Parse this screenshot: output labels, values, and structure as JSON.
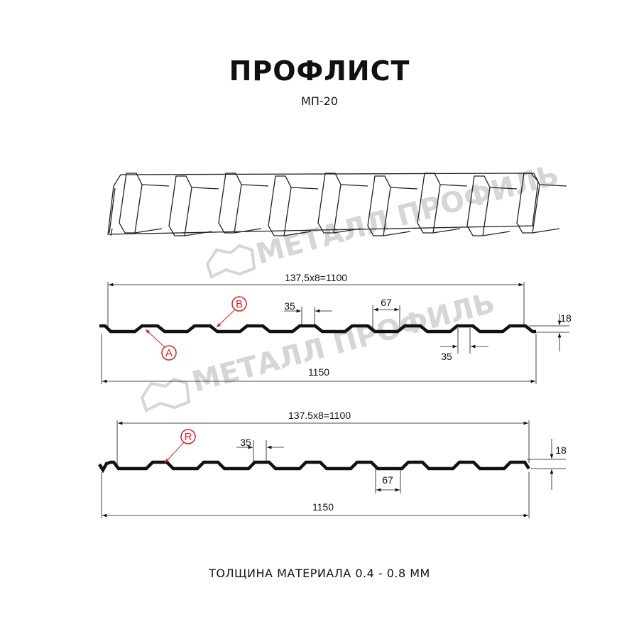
{
  "header": {
    "title": "ПРОФЛИСТ",
    "model": "МП-20"
  },
  "watermark": {
    "text": "МЕТАЛЛ ПРОФИЛЬ"
  },
  "profile_1": {
    "dim_useful": "137,5x8=1100",
    "dim_total": "1150",
    "dim_top_width": "35",
    "dim_bottom_width_bottom": "35",
    "dim_rib_base": "67",
    "dim_height": "18",
    "marker_a": "A",
    "marker_b": "B"
  },
  "profile_2": {
    "dim_useful": "137.5x8=1100",
    "dim_total": "1150",
    "dim_top_width": "35",
    "dim_rib_base": "67",
    "dim_height": "18",
    "marker_r": "R"
  },
  "footer": {
    "thickness": "ТОЛЩИНА МАТЕРИАЛА 0.4 - 0.8 ММ"
  },
  "colors": {
    "profile": "#111111",
    "marker": "#e02020",
    "watermark": "#d6d6d6"
  }
}
